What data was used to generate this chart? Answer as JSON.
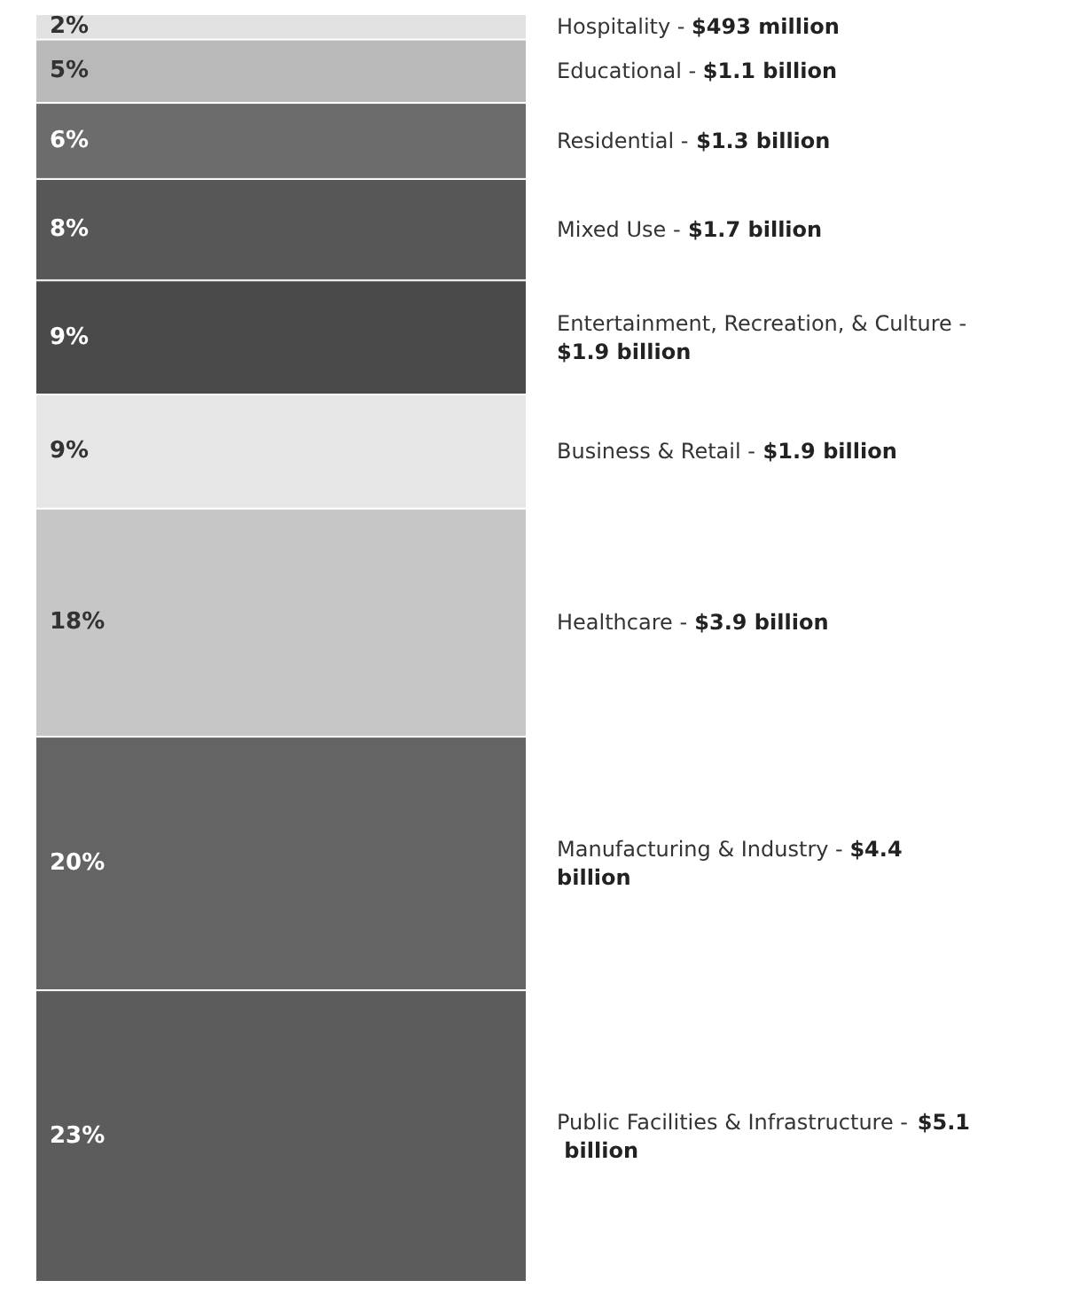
{
  "chart_data": {
    "type": "bar",
    "stacked": true,
    "categories": [
      null
    ],
    "series": [
      {
        "name": "Public Facilities & Infrastructure - $5.1 billion",
        "color": "#5c5c5c",
        "values": [
          23
        ],
        "value_labels": [
          "23%"
        ]
      },
      {
        "name": "Manufacturing & Industry - $4.4 billion",
        "color": "#646464",
        "values": [
          20
        ],
        "value_labels": [
          "20%"
        ]
      },
      {
        "name": "Healthcare - $3.9 billion",
        "color": "#c6c6c6",
        "values": [
          18
        ],
        "value_labels": [
          "18%"
        ]
      },
      {
        "name": "Business & Retail - $1.9 billion",
        "color": "#e6e6e6",
        "values": [
          9
        ],
        "value_labels": [
          "9%"
        ]
      },
      {
        "name": "Entertainment, Recreation, & Culture - $1.9 billion",
        "color": "#4a4a4a",
        "values": [
          9
        ],
        "value_labels": [
          "9%"
        ]
      },
      {
        "name": "Mixed Use - $1.7 billion",
        "color": "#575757",
        "values": [
          8
        ],
        "value_labels": [
          "8%"
        ]
      },
      {
        "name": "Residential - $1.3 billion",
        "color": "#6c6c6c",
        "values": [
          6
        ],
        "value_labels": [
          "6%"
        ]
      },
      {
        "name": "Educational - $1.1 billion",
        "color": "#b9b9b9",
        "values": [
          5
        ],
        "value_labels": [
          "5%"
        ]
      },
      {
        "name": "Hospitality - $493 million",
        "color": "#e2e2e2",
        "values": [
          2
        ],
        "value_labels": [
          "2%"
        ]
      }
    ],
    "legend": false
  }
}
